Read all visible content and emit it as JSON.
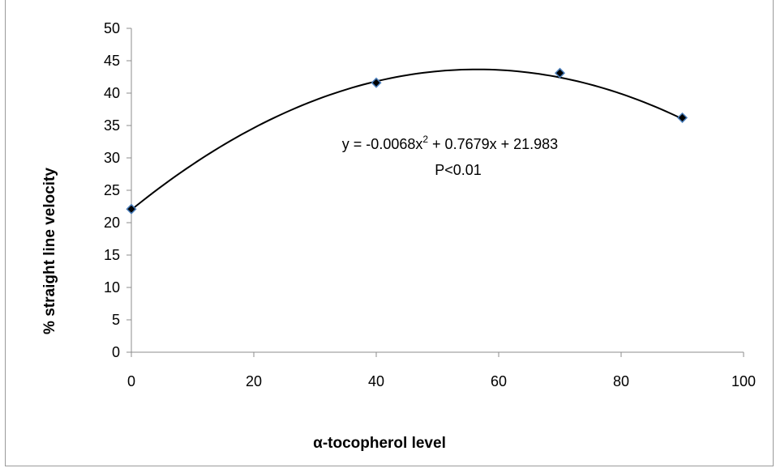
{
  "chart_data": {
    "type": "scatter",
    "title": "",
    "xlabel": "α-tocopherol level",
    "ylabel": "% straight line velocity",
    "xlim": [
      0,
      100
    ],
    "ylim": [
      0,
      50
    ],
    "x_ticks": [
      0,
      20,
      40,
      60,
      80,
      100
    ],
    "y_ticks": [
      0,
      5,
      10,
      15,
      20,
      25,
      30,
      35,
      40,
      45,
      50
    ],
    "grid": false,
    "legend": "none",
    "series": [
      {
        "x": [
          0,
          40,
          70,
          90
        ],
        "y": [
          22.1,
          41.6,
          43.1,
          36.2
        ]
      }
    ],
    "trendline": {
      "type": "polynomial",
      "degree": 2,
      "coefficients": [
        -0.0068,
        0.7679,
        21.983
      ]
    },
    "annotations": {
      "equation_prefix": "y = -0.0068x",
      "equation_sup": "2",
      "equation_suffix": " + 0.7679x + 21.983",
      "p_value": "P<0.01"
    },
    "colors": {
      "marker_fill": "#000000",
      "marker_edge": "#4a7ebb",
      "line": "#000000",
      "axis": "#8c8c8c"
    }
  }
}
